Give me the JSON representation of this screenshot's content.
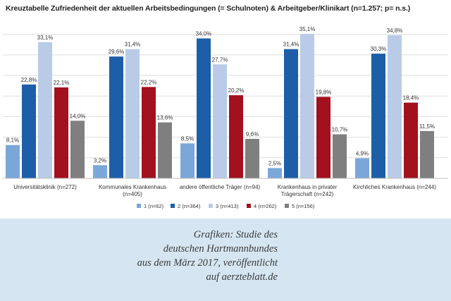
{
  "chart_data": {
    "type": "bar",
    "title": "Kreuztabelle Zufriedenheit der aktuellen Arbeitsbedingungen (= Schulnoten) & Arbeitgeber/Klinikart (n=1.257; p= n.s.)",
    "categories": [
      [
        "Universitätsklinik (n=272)"
      ],
      [
        "Kommunales Krankenhaus",
        "(n=405)"
      ],
      [
        "andere öffentliche Träger (n=94)"
      ],
      [
        "Krankenhaus in privater",
        "Trägerschaft (n=242)"
      ],
      [
        "Kirchliches Krankenhaus (n=244)"
      ]
    ],
    "series": [
      {
        "name": "1 (n=62)",
        "color": "#7ba7d8",
        "values": [
          8.1,
          3.2,
          8.5,
          2.5,
          4.9
        ],
        "labels": [
          "8,1%",
          "3,2%",
          "8,5%",
          "2,5%",
          "4,9%"
        ]
      },
      {
        "name": "2 (n=364)",
        "color": "#1d5ea8",
        "values": [
          22.8,
          29.6,
          34.0,
          31.4,
          30.3
        ],
        "labels": [
          "22,8%",
          "29,6%",
          "34,0%",
          "31,4%",
          "30,3%"
        ]
      },
      {
        "name": "3 (n=413)",
        "color": "#b9cbe6",
        "values": [
          33.1,
          31.4,
          27.7,
          35.1,
          34.8
        ],
        "labels": [
          "33,1%",
          "31,4%",
          "27,7%",
          "35,1%",
          "34,8%"
        ]
      },
      {
        "name": "4 (n=262)",
        "color": "#a3111f",
        "values": [
          22.1,
          22.2,
          20.2,
          19.8,
          18.4
        ],
        "labels": [
          "22,1%",
          "22,2%",
          "20,2%",
          "19,8%",
          "18,4%"
        ]
      },
      {
        "name": "5 (n=156)",
        "color": "#7f7f7f",
        "values": [
          14.0,
          13.6,
          9.6,
          10.7,
          11.5
        ],
        "labels": [
          "14,0%",
          "13,6%",
          "9,6%",
          "10,7%",
          "11,5%"
        ]
      }
    ],
    "ylim": [
      0,
      37
    ],
    "grid": true,
    "legend": "bottom",
    "xlabel": "",
    "ylabel": ""
  },
  "caption": {
    "lines": [
      "Grafiken: Studie des",
      "deutschen Hartmannbundes",
      "aus dem März 2017, veröffentlicht",
      "auf aerzteblatt.de"
    ]
  }
}
